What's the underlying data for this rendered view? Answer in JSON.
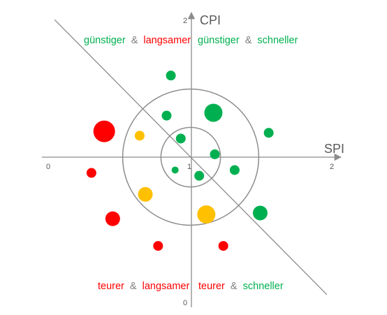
{
  "axes": {
    "x_title": "SPI",
    "y_title": "CPI",
    "x_ticks": [
      "0",
      "1",
      "2"
    ],
    "y_ticks": [
      "2",
      "0"
    ]
  },
  "quadrants": {
    "top_left": {
      "word1": "günstiger",
      "amp": "&",
      "word2": "langsamer"
    },
    "top_right": {
      "word1": "günstiger",
      "amp": "&",
      "word2": "schneller"
    },
    "bottom_left": {
      "word1": "teurer",
      "amp": "&",
      "word2": "langsamer"
    },
    "bottom_right": {
      "word1": "teurer",
      "amp": "&",
      "word2": "schneller"
    }
  },
  "colors": {
    "axis": "#8c8c8c",
    "green": "#00b050",
    "red": "#ff0000",
    "amber": "#ffc000",
    "ampersand": "#7f7f7f",
    "text": "#595959"
  },
  "chart_data": {
    "type": "scatter",
    "xlim": [
      0,
      2
    ],
    "ylim": [
      0,
      2
    ],
    "center": [
      1,
      1
    ],
    "rings": [
      0.21,
      0.48
    ],
    "diagonal": "x + y = 2",
    "points": [
      {
        "x": 0.86,
        "y": 1.57,
        "size": "small",
        "color": "green"
      },
      {
        "x": 0.83,
        "y": 1.29,
        "size": "small",
        "color": "green"
      },
      {
        "x": 1.16,
        "y": 1.31,
        "size": "large",
        "color": "green"
      },
      {
        "x": 1.55,
        "y": 1.17,
        "size": "small",
        "color": "green"
      },
      {
        "x": 0.93,
        "y": 1.13,
        "size": "small",
        "color": "green"
      },
      {
        "x": 1.17,
        "y": 1.02,
        "size": "small",
        "color": "green"
      },
      {
        "x": 0.89,
        "y": 0.91,
        "size": "tiny",
        "color": "green"
      },
      {
        "x": 1.06,
        "y": 0.87,
        "size": "small",
        "color": "green"
      },
      {
        "x": 1.31,
        "y": 0.91,
        "size": "small",
        "color": "green"
      },
      {
        "x": 1.49,
        "y": 0.61,
        "size": "medium",
        "color": "green"
      },
      {
        "x": 0.64,
        "y": 1.15,
        "size": "small",
        "color": "amber"
      },
      {
        "x": 0.68,
        "y": 0.74,
        "size": "medium",
        "color": "amber"
      },
      {
        "x": 1.11,
        "y": 0.6,
        "size": "large",
        "color": "amber"
      },
      {
        "x": 0.39,
        "y": 1.18,
        "size": "xlarge",
        "color": "red"
      },
      {
        "x": 0.3,
        "y": 0.89,
        "size": "small",
        "color": "red"
      },
      {
        "x": 0.45,
        "y": 0.57,
        "size": "medium",
        "color": "red"
      },
      {
        "x": 0.77,
        "y": 0.38,
        "size": "small",
        "color": "red"
      },
      {
        "x": 1.23,
        "y": 0.38,
        "size": "small",
        "color": "red"
      }
    ]
  }
}
